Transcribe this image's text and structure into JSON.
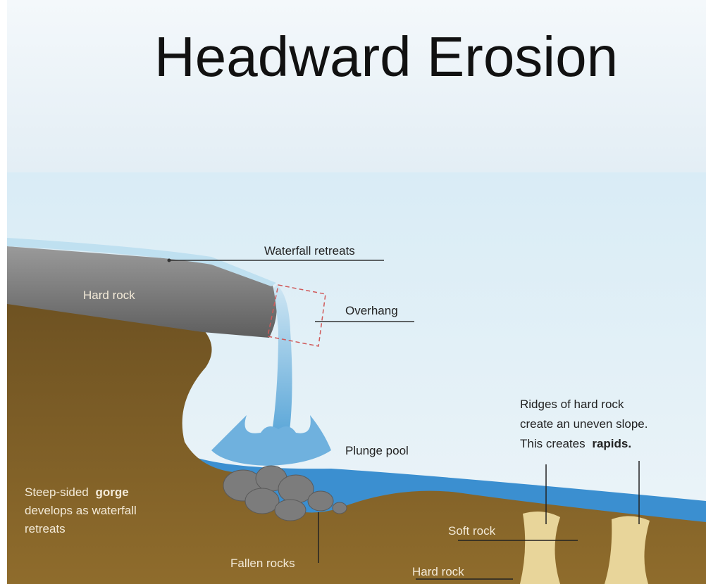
{
  "title": "Headward Erosion",
  "labels": {
    "waterfall_retreats": "Waterfall retreats",
    "hard_rock_top": "Hard rock",
    "overhang": "Overhang",
    "plunge_pool": "Plunge pool",
    "ridges_note": {
      "line1": "Ridges of hard rock",
      "line2": "create an uneven slope.",
      "line3": "This creates",
      "bold": "rapids."
    },
    "gorge_note": {
      "line1": "Steep-sided",
      "bold": "gorge",
      "line2": "develops as waterfall",
      "line3": "retreats"
    },
    "soft_rock": "Soft rock",
    "fallen_rocks": "Fallen rocks",
    "hard_rock_bottom": "Hard rock"
  }
}
